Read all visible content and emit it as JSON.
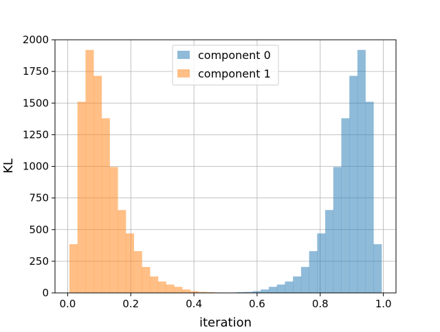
{
  "chart_data": {
    "type": "bar",
    "title": "",
    "xlabel": "iteration",
    "ylabel": "KL",
    "xlim": [
      -0.04,
      1.04
    ],
    "ylim": [
      0,
      2000
    ],
    "xticks": [
      "0.0",
      "0.2",
      "0.4",
      "0.6",
      "0.8",
      "1.0"
    ],
    "xtick_values": [
      0.0,
      0.2,
      0.4,
      0.6,
      0.8,
      1.0
    ],
    "yticks": [
      "0",
      "250",
      "500",
      "750",
      "1000",
      "1250",
      "1500",
      "1750",
      "2000"
    ],
    "ytick_values": [
      0,
      250,
      500,
      750,
      1000,
      1250,
      1500,
      1750,
      2000
    ],
    "grid": true,
    "legend_position": "top-center",
    "bin_width": 0.0255,
    "series": [
      {
        "name": "component 0",
        "color": "#1f77b4",
        "opacity": 0.5,
        "bin_starts": [
          0.5098,
          0.5353,
          0.5608,
          0.5863,
          0.6118,
          0.6373,
          0.6628,
          0.6883,
          0.7138,
          0.7393,
          0.7648,
          0.7903,
          0.8158,
          0.8413,
          0.8668,
          0.8923,
          0.9178,
          0.9433,
          0.9688
        ],
        "values": [
          3,
          6,
          8,
          14,
          27,
          48,
          66,
          90,
          130,
          205,
          330,
          470,
          655,
          995,
          1380,
          1715,
          1920,
          1510,
          385
        ]
      },
      {
        "name": "component 1",
        "color": "#ff7f0e",
        "opacity": 0.5,
        "bin_starts": [
          0.0057,
          0.0312,
          0.0567,
          0.0822,
          0.1077,
          0.1332,
          0.1587,
          0.1842,
          0.2097,
          0.2352,
          0.2607,
          0.2862,
          0.3117,
          0.3372,
          0.3627,
          0.3882,
          0.4137,
          0.4392,
          0.4647
        ],
        "values": [
          385,
          1510,
          1920,
          1715,
          1380,
          995,
          655,
          470,
          330,
          205,
          130,
          90,
          66,
          48,
          27,
          14,
          8,
          6,
          3
        ]
      }
    ]
  }
}
